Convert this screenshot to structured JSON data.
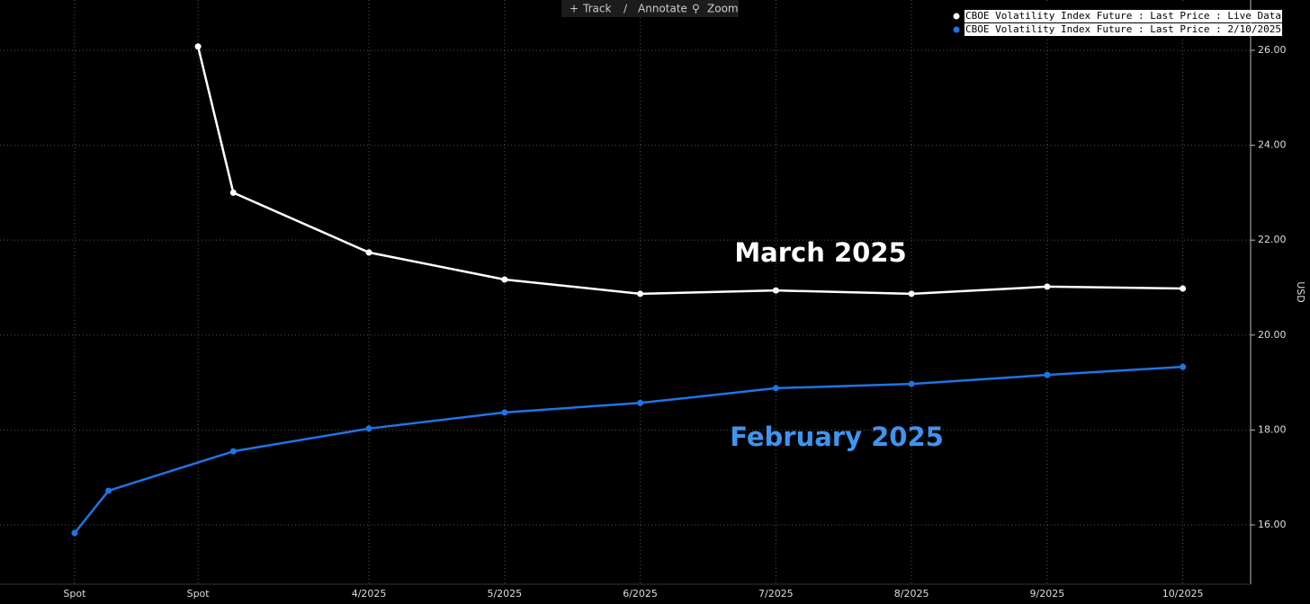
{
  "toolbar": [
    "Track",
    "Annotate",
    "Zoom"
  ],
  "chart_data": {
    "type": "line",
    "y_label": "USD",
    "annotations": [
      {
        "text": "March 2025",
        "color": "#ffffff"
      },
      {
        "text": "February 2025",
        "color": "#3d95f0"
      }
    ],
    "series": [
      {
        "name": "CBOE Volatility Index Future : Last Price : Live Data",
        "color": "#ffffff",
        "x": [
          2.74,
          3,
          4,
          5,
          6,
          7,
          8,
          9,
          10
        ],
        "values": [
          26.08,
          23.0,
          21.74,
          21.17,
          20.87,
          20.94,
          20.87,
          21.02,
          20.98
        ]
      },
      {
        "name": "CBOE Volatility Index Future : Last Price : 2/10/2025",
        "color": "#1f74e6",
        "x": [
          1.83,
          2.08,
          3,
          4,
          5,
          6,
          7,
          8,
          9,
          10
        ],
        "values": [
          15.83,
          16.72,
          17.55,
          18.03,
          18.37,
          18.57,
          18.88,
          18.97,
          19.16,
          19.33
        ]
      }
    ],
    "xlim": [
      1.28,
      10.5
    ],
    "xticks": [
      {
        "value": 1.83,
        "label": "Spot"
      },
      {
        "value": 2.74,
        "label": "Spot"
      },
      {
        "value": 4,
        "label": "4/2025"
      },
      {
        "value": 5,
        "label": "5/2025"
      },
      {
        "value": 6,
        "label": "6/2025"
      },
      {
        "value": 7,
        "label": "7/2025"
      },
      {
        "value": 8,
        "label": "8/2025"
      },
      {
        "value": 9,
        "label": "9/2025"
      },
      {
        "value": 10,
        "label": "10/2025"
      }
    ],
    "ylim": [
      14.75,
      27.06
    ],
    "yticks": [
      {
        "value": 16,
        "label": "16.00"
      },
      {
        "value": 18,
        "label": "18.00"
      },
      {
        "value": 20,
        "label": "20.00"
      },
      {
        "value": 22,
        "label": "22.00"
      },
      {
        "value": 24,
        "label": "24.00"
      },
      {
        "value": 26,
        "label": "26.00"
      }
    ],
    "grid": true,
    "legend": "top-right"
  }
}
